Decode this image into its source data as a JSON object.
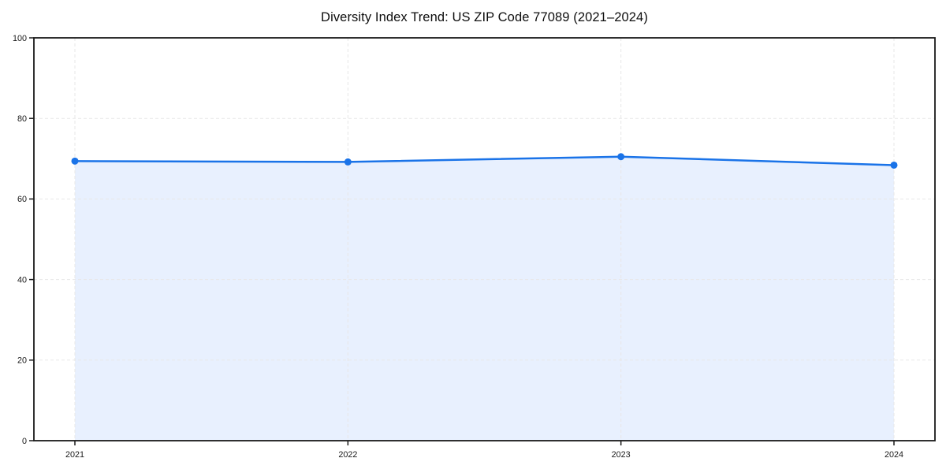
{
  "page": {
    "title": "Diversity Index Trend: US ZIP Code 77089 (2021–2024)"
  },
  "chart_data": {
    "type": "area",
    "title": "Diversity Index Trend: US ZIP Code 77089 (2021–2024)",
    "categories": [
      "2021",
      "2022",
      "2023",
      "2024"
    ],
    "x": [
      2021,
      2022,
      2023,
      2024
    ],
    "series": [
      {
        "name": "Diversity Index",
        "values": [
          69.4,
          69.2,
          70.5,
          68.4
        ]
      }
    ],
    "xlabel": "",
    "ylabel": "",
    "ylim": [
      0,
      100
    ],
    "yticks": [
      0,
      20,
      40,
      60,
      80,
      100
    ],
    "grid": true,
    "grid_style": "dashed",
    "legend": "none",
    "marker": "circle",
    "colors": {
      "line": "#1a73e8",
      "marker": "#1a73e8",
      "fill": "#e8f0fe",
      "grid": "#e7e7e7",
      "spine": "#1a1a1a",
      "tick_text": "#191919",
      "title_text": "#0d0d0d",
      "background": "#ffffff"
    }
  }
}
